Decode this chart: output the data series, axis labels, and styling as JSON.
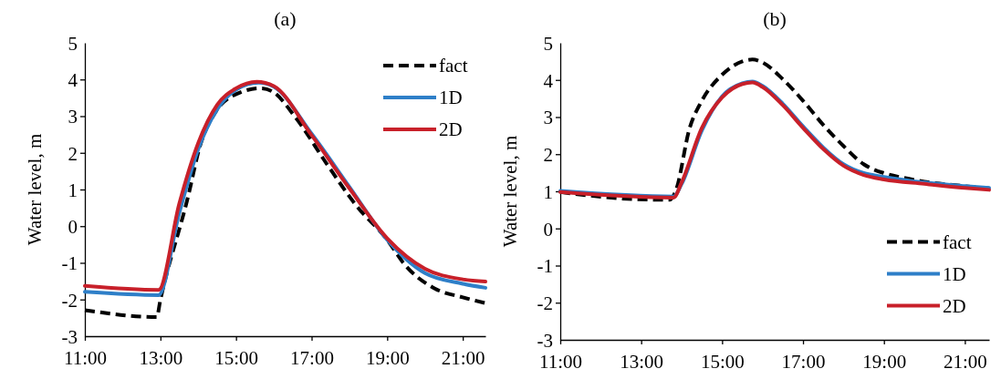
{
  "chart_data": [
    {
      "type": "line",
      "title": "(a)",
      "ylabel": "Water level, m",
      "xlim": [
        11,
        21.6
      ],
      "xticks": [
        {
          "value": 11,
          "label": "11:00"
        },
        {
          "value": 13,
          "label": "13:00"
        },
        {
          "value": 15,
          "label": "15:00"
        },
        {
          "value": 17,
          "label": "17:00"
        },
        {
          "value": 19,
          "label": "19:00"
        },
        {
          "value": 21,
          "label": "21:00"
        }
      ],
      "ylim": [
        -3,
        5
      ],
      "yticks": [
        -3,
        -2,
        -1,
        0,
        1,
        2,
        3,
        4,
        5
      ],
      "grid": false,
      "legend": "top right",
      "marker": "none",
      "series": [
        {
          "name": "fact",
          "color": "#000000",
          "line_style": "dashed",
          "x": [
            11,
            12.9,
            13.0,
            13.73,
            14.05,
            14.45,
            15.0,
            15.65,
            15.95,
            16.6,
            17.4,
            18.2,
            19.0,
            19.45,
            20.26,
            21.0,
            21.6
          ],
          "values": [
            -2.29,
            -2.48,
            -2.0,
            0.8,
            2.2,
            3.1,
            3.6,
            3.76,
            3.68,
            2.93,
            1.7,
            0.54,
            -0.37,
            -1.03,
            -1.7,
            -1.94,
            -2.1
          ]
        },
        {
          "name": "1D",
          "color": "#2e7fc8",
          "line_style": "solid",
          "x": [
            11,
            12.95,
            13.5,
            14.0,
            14.5,
            15.0,
            15.6,
            16.0,
            17.0,
            18.0,
            19.0,
            20.0,
            21.0,
            21.6
          ],
          "values": [
            -1.79,
            -1.88,
            0.37,
            2.1,
            3.18,
            3.72,
            3.91,
            3.8,
            2.52,
            1.07,
            -0.37,
            -1.28,
            -1.57,
            -1.68
          ]
        },
        {
          "name": "2D",
          "color": "#c8202a",
          "line_style": "solid",
          "x": [
            11,
            12.95,
            13.5,
            14.0,
            14.5,
            15.0,
            15.55,
            16.0,
            17.0,
            18.0,
            19.0,
            20.0,
            21.0,
            21.6
          ],
          "values": [
            -1.63,
            -1.74,
            0.62,
            2.27,
            3.31,
            3.76,
            3.94,
            3.82,
            2.48,
            1.03,
            -0.33,
            -1.16,
            -1.45,
            -1.51
          ]
        }
      ]
    },
    {
      "type": "line",
      "title": "(b)",
      "ylabel": "Water level, m",
      "xlim": [
        11,
        21.6
      ],
      "xticks": [
        {
          "value": 11,
          "label": "11:00"
        },
        {
          "value": 13,
          "label": "13:00"
        },
        {
          "value": 15,
          "label": "15:00"
        },
        {
          "value": 17,
          "label": "17:00"
        },
        {
          "value": 19,
          "label": "19:00"
        },
        {
          "value": 21,
          "label": "21:00"
        }
      ],
      "ylim": [
        -3,
        5
      ],
      "yticks": [
        -3,
        -2,
        -1,
        0,
        1,
        2,
        3,
        4,
        5
      ],
      "grid": false,
      "legend": "bottom right",
      "marker": "none",
      "series": [
        {
          "name": "fact",
          "color": "#000000",
          "line_style": "dashed",
          "x": [
            11,
            12.8,
            13.7,
            13.85,
            14.2,
            14.5,
            15.0,
            15.5,
            15.75,
            16.0,
            16.5,
            17.0,
            17.5,
            18.0,
            18.5,
            19.0,
            19.5,
            20.0,
            21.0,
            21.6
          ],
          "values": [
            0.98,
            0.79,
            0.77,
            1.0,
            2.71,
            3.44,
            4.14,
            4.5,
            4.55,
            4.47,
            4.02,
            3.44,
            2.79,
            2.22,
            1.73,
            1.49,
            1.36,
            1.26,
            1.14,
            1.08
          ]
        },
        {
          "name": "1D",
          "color": "#2e7fc8",
          "line_style": "solid",
          "x": [
            11,
            13.8,
            14.0,
            14.5,
            15.0,
            15.5,
            15.75,
            16.0,
            16.5,
            17.0,
            17.5,
            18.0,
            18.5,
            19.0,
            20.0,
            21.0,
            21.6
          ],
          "values": [
            1.01,
            0.86,
            1.2,
            2.64,
            3.56,
            3.91,
            3.96,
            3.84,
            3.36,
            2.75,
            2.18,
            1.73,
            1.49,
            1.39,
            1.24,
            1.14,
            1.09
          ]
        },
        {
          "name": "2D",
          "color": "#c8202a",
          "line_style": "solid",
          "x": [
            11,
            13.8,
            14.0,
            14.5,
            15.0,
            15.5,
            15.75,
            16.0,
            16.5,
            17.0,
            17.5,
            18.0,
            18.5,
            19.0,
            20.0,
            21.0,
            21.6
          ],
          "values": [
            0.98,
            0.83,
            1.24,
            2.71,
            3.53,
            3.89,
            3.93,
            3.81,
            3.32,
            2.71,
            2.14,
            1.69,
            1.44,
            1.32,
            1.2,
            1.09,
            1.04
          ]
        }
      ]
    }
  ]
}
